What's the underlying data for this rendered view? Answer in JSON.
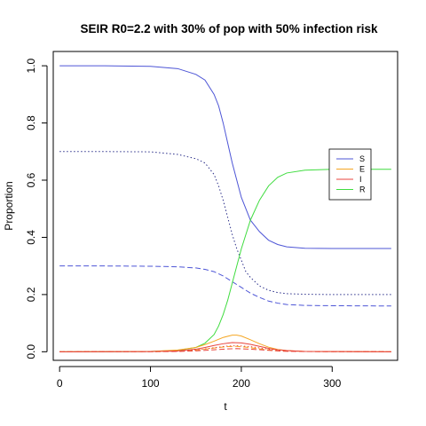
{
  "chart_data": {
    "type": "line",
    "title": "SEIR R0=2.2 with 30% of pop with 50% infection risk",
    "xlabel": "t",
    "ylabel": "Proportion",
    "xlim": [
      -7,
      372
    ],
    "ylim": [
      -0.03,
      1.05
    ],
    "xticks": [
      "0",
      "100",
      "200",
      "300"
    ],
    "yticks": [
      "0.0",
      "0.2",
      "0.4",
      "0.6",
      "0.8",
      "1.0"
    ],
    "legend_position": "right",
    "legend": [
      {
        "label": "S",
        "color": "#4d55d6"
      },
      {
        "label": "E",
        "color": "#f5a623"
      },
      {
        "label": "I",
        "color": "#e8453c"
      },
      {
        "label": "R",
        "color": "#3fdc3f"
      }
    ],
    "series": [
      {
        "color": "#4d55d6",
        "dash": "solid",
        "x": [
          0,
          50,
          100,
          130,
          150,
          160,
          170,
          175,
          180,
          185,
          190,
          195,
          200,
          205,
          210,
          220,
          230,
          240,
          250,
          270,
          300,
          365
        ],
        "y": [
          1.0,
          1.0,
          0.998,
          0.99,
          0.97,
          0.95,
          0.9,
          0.86,
          0.8,
          0.73,
          0.66,
          0.6,
          0.54,
          0.5,
          0.46,
          0.42,
          0.39,
          0.375,
          0.367,
          0.362,
          0.361,
          0.361
        ]
      },
      {
        "color": "#2b2f8a",
        "dash": "dotted",
        "x": [
          0,
          50,
          100,
          130,
          150,
          160,
          170,
          175,
          180,
          185,
          190,
          195,
          200,
          205,
          210,
          220,
          230,
          240,
          250,
          270,
          300,
          365
        ],
        "y": [
          0.7,
          0.7,
          0.699,
          0.69,
          0.675,
          0.66,
          0.62,
          0.58,
          0.53,
          0.47,
          0.41,
          0.36,
          0.32,
          0.28,
          0.26,
          0.23,
          0.215,
          0.207,
          0.203,
          0.201,
          0.2,
          0.2
        ]
      },
      {
        "color": "#4d55d6",
        "dash": "dashed",
        "x": [
          0,
          50,
          100,
          130,
          150,
          160,
          170,
          180,
          190,
          200,
          210,
          220,
          230,
          240,
          250,
          270,
          300,
          365
        ],
        "y": [
          0.3,
          0.3,
          0.299,
          0.297,
          0.293,
          0.288,
          0.28,
          0.265,
          0.245,
          0.225,
          0.205,
          0.19,
          0.177,
          0.17,
          0.165,
          0.162,
          0.161,
          0.16
        ]
      },
      {
        "color": "#3fdc3f",
        "dash": "solid",
        "x": [
          0,
          50,
          100,
          130,
          150,
          160,
          170,
          175,
          180,
          185,
          190,
          195,
          200,
          205,
          210,
          220,
          230,
          240,
          250,
          270,
          300,
          365
        ],
        "y": [
          0.0,
          0.0,
          0.001,
          0.005,
          0.015,
          0.03,
          0.06,
          0.09,
          0.13,
          0.18,
          0.24,
          0.3,
          0.36,
          0.41,
          0.46,
          0.53,
          0.58,
          0.61,
          0.625,
          0.635,
          0.638,
          0.638
        ]
      },
      {
        "color": "#f5a623",
        "dash": "solid",
        "x": [
          0,
          100,
          130,
          150,
          160,
          170,
          180,
          190,
          195,
          200,
          210,
          220,
          230,
          240,
          250,
          270,
          365
        ],
        "y": [
          0.0,
          0.001,
          0.006,
          0.015,
          0.025,
          0.037,
          0.05,
          0.058,
          0.058,
          0.055,
          0.042,
          0.028,
          0.016,
          0.008,
          0.004,
          0.001,
          0.0
        ]
      },
      {
        "color": "#f5a623",
        "dash": "dashed",
        "x": [
          0,
          100,
          130,
          150,
          170,
          185,
          195,
          205,
          220,
          240,
          270,
          365
        ],
        "y": [
          0.0,
          0.0005,
          0.002,
          0.006,
          0.013,
          0.018,
          0.019,
          0.016,
          0.01,
          0.003,
          0.001,
          0.0
        ]
      },
      {
        "color": "#e8453c",
        "dash": "solid",
        "x": [
          0,
          100,
          130,
          150,
          160,
          170,
          180,
          190,
          200,
          210,
          220,
          230,
          240,
          250,
          270,
          365
        ],
        "y": [
          0.0,
          0.0005,
          0.003,
          0.009,
          0.015,
          0.022,
          0.028,
          0.032,
          0.031,
          0.026,
          0.019,
          0.012,
          0.007,
          0.004,
          0.001,
          0.0
        ]
      },
      {
        "color": "#e8453c",
        "dash": "dotted",
        "x": [
          0,
          100,
          130,
          150,
          170,
          185,
          195,
          210,
          225,
          245,
          270,
          365
        ],
        "y": [
          0.0,
          0.0003,
          0.002,
          0.006,
          0.014,
          0.02,
          0.021,
          0.018,
          0.011,
          0.004,
          0.001,
          0.0
        ]
      },
      {
        "color": "#e8453c",
        "dash": "dashed",
        "x": [
          0,
          100,
          130,
          150,
          170,
          185,
          195,
          210,
          225,
          245,
          270,
          365
        ],
        "y": [
          0.0,
          0.0002,
          0.001,
          0.003,
          0.007,
          0.01,
          0.011,
          0.009,
          0.006,
          0.002,
          0.0005,
          0.0
        ]
      }
    ]
  }
}
